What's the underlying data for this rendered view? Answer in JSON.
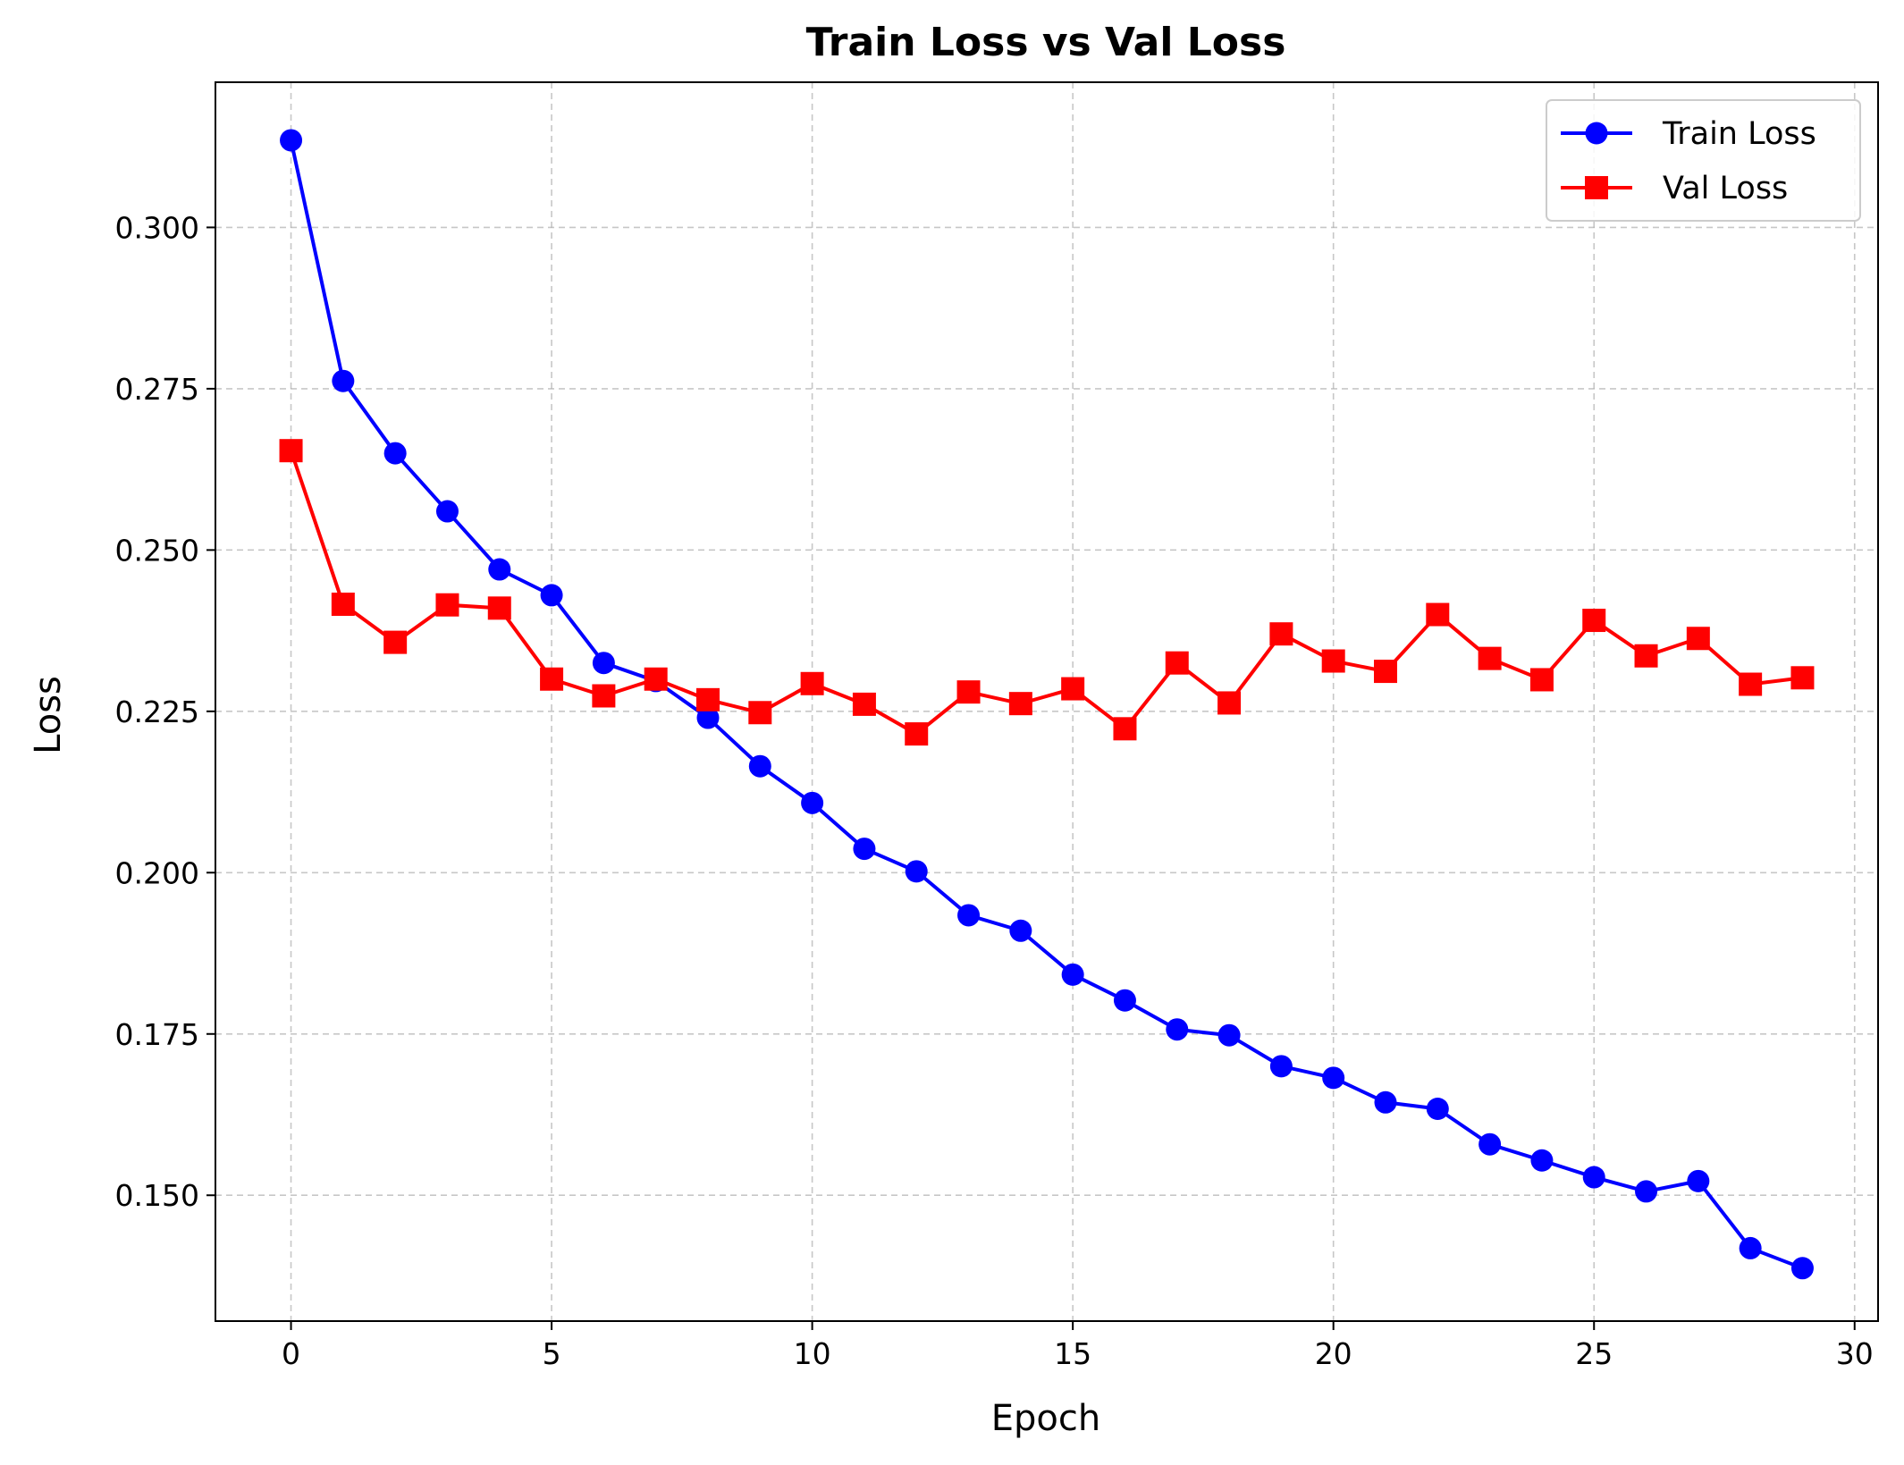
{
  "chart_data": {
    "type": "line",
    "title": "Train Loss vs Val Loss",
    "xlabel": "Epoch",
    "ylabel": "Loss",
    "xlim": [
      -1.45,
      30.45
    ],
    "ylim": [
      0.1305,
      0.3225
    ],
    "x_ticks": [
      0,
      5,
      10,
      15,
      20,
      25,
      30
    ],
    "x_tick_labels": [
      "0",
      "5",
      "10",
      "15",
      "20",
      "25",
      "30"
    ],
    "y_ticks": [
      0.15,
      0.175,
      0.2,
      0.225,
      0.25,
      0.275,
      0.3
    ],
    "y_tick_labels": [
      "0.150",
      "0.175",
      "0.200",
      "0.225",
      "0.250",
      "0.275",
      "0.300"
    ],
    "grid": true,
    "legend_position": "top-right",
    "x": [
      0,
      1,
      2,
      3,
      4,
      5,
      6,
      7,
      8,
      9,
      10,
      11,
      12,
      13,
      14,
      15,
      16,
      17,
      18,
      19,
      20,
      21,
      22,
      23,
      24,
      25,
      26,
      27,
      28,
      29
    ],
    "series": [
      {
        "name": "Train Loss",
        "color": "#0000ff",
        "marker": "circle",
        "values": [
          0.3135,
          0.2762,
          0.265,
          0.256,
          0.247,
          0.243,
          0.2325,
          0.2297,
          0.224,
          0.2165,
          0.2108,
          0.2037,
          0.2002,
          0.1934,
          0.191,
          0.1842,
          0.1802,
          0.1757,
          0.1748,
          0.17,
          0.1682,
          0.1644,
          0.1634,
          0.1579,
          0.1554,
          0.1528,
          0.1506,
          0.1522,
          0.1418,
          0.1387
        ]
      },
      {
        "name": "Val Loss",
        "color": "#ff0000",
        "marker": "square",
        "values": [
          0.2654,
          0.2416,
          0.2357,
          0.2415,
          0.241,
          0.23,
          0.2274,
          0.23,
          0.2268,
          0.2248,
          0.2293,
          0.2261,
          0.2215,
          0.228,
          0.2262,
          0.2285,
          0.2223,
          0.2325,
          0.2263,
          0.237,
          0.2328,
          0.2312,
          0.24,
          0.2332,
          0.2299,
          0.2391,
          0.2336,
          0.2363,
          0.2292,
          0.2302
        ]
      }
    ]
  }
}
